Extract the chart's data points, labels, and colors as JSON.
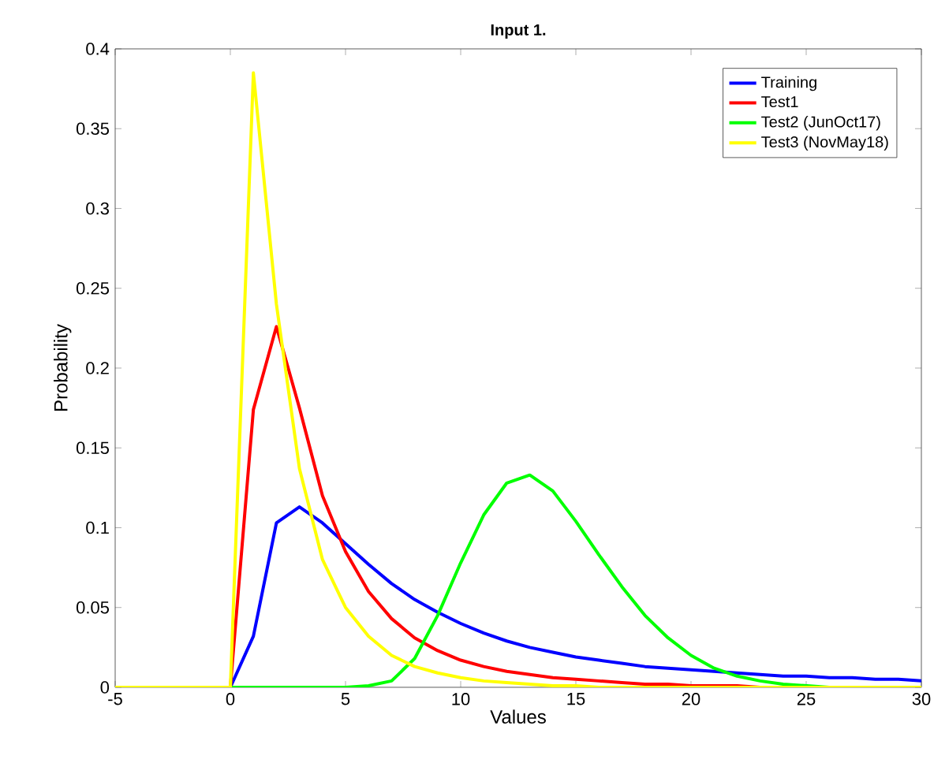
{
  "chart_data": {
    "type": "line",
    "title": "Input 1.",
    "xlabel": "Values",
    "ylabel": "Probability",
    "x": [
      -5,
      -4,
      -3,
      -2,
      -1,
      0,
      1,
      2,
      3,
      4,
      5,
      6,
      7,
      8,
      9,
      10,
      11,
      12,
      13,
      14,
      15,
      16,
      17,
      18,
      19,
      20,
      21,
      22,
      23,
      24,
      25,
      26,
      27,
      28,
      29,
      30
    ],
    "series": [
      {
        "name": "Training",
        "color": "#0000ff",
        "values": [
          null,
          null,
          null,
          null,
          0,
          0,
          0.032,
          0.103,
          0.113,
          0.103,
          0.09,
          0.077,
          0.065,
          0.055,
          0.047,
          0.04,
          0.034,
          0.029,
          0.025,
          0.022,
          0.019,
          0.017,
          0.015,
          0.013,
          0.012,
          0.011,
          0.01,
          0.009,
          0.008,
          0.007,
          0.007,
          0.006,
          0.006,
          0.005,
          0.005,
          0.004
        ]
      },
      {
        "name": "Test1",
        "color": "#ff0000",
        "values": [
          null,
          null,
          null,
          null,
          0,
          0,
          0.174,
          0.226,
          0.175,
          0.12,
          0.085,
          0.06,
          0.043,
          0.031,
          0.023,
          0.017,
          0.013,
          0.01,
          0.008,
          0.006,
          0.005,
          0.004,
          0.003,
          0.002,
          0.002,
          0.001,
          0.001,
          0.001,
          0,
          0,
          null,
          null,
          null,
          null,
          null,
          null
        ]
      },
      {
        "name": "Test2 (JunOct17)",
        "color": "#00ff00",
        "values": [
          null,
          null,
          null,
          null,
          0,
          0,
          0,
          0,
          0,
          0,
          0,
          0.001,
          0.004,
          0.018,
          0.045,
          0.078,
          0.108,
          0.128,
          0.133,
          0.123,
          0.104,
          0.083,
          0.063,
          0.045,
          0.031,
          0.02,
          0.012,
          0.007,
          0.004,
          0.002,
          0.001,
          0,
          0,
          null,
          null,
          null
        ]
      },
      {
        "name": "Test3 (NovMay18)",
        "color": "#ffff00",
        "values": [
          0,
          0,
          0,
          0,
          0,
          0,
          0.385,
          0.24,
          0.137,
          0.08,
          0.05,
          0.032,
          0.02,
          0.013,
          0.009,
          0.006,
          0.004,
          0.003,
          0.002,
          0.001,
          0.001,
          0,
          0,
          0,
          0,
          0,
          0,
          0,
          0,
          0,
          0,
          0,
          0,
          0,
          0,
          0
        ]
      }
    ],
    "xlim": [
      -5,
      30
    ],
    "ylim": [
      0,
      0.4
    ],
    "xticks": [
      -5,
      0,
      5,
      10,
      15,
      20,
      25,
      30
    ],
    "yticks": [
      0,
      0.05,
      0.1,
      0.15,
      0.2,
      0.25,
      0.3,
      0.35,
      0.4
    ],
    "legend": "top right",
    "marker": "none",
    "line_style": "solid"
  }
}
